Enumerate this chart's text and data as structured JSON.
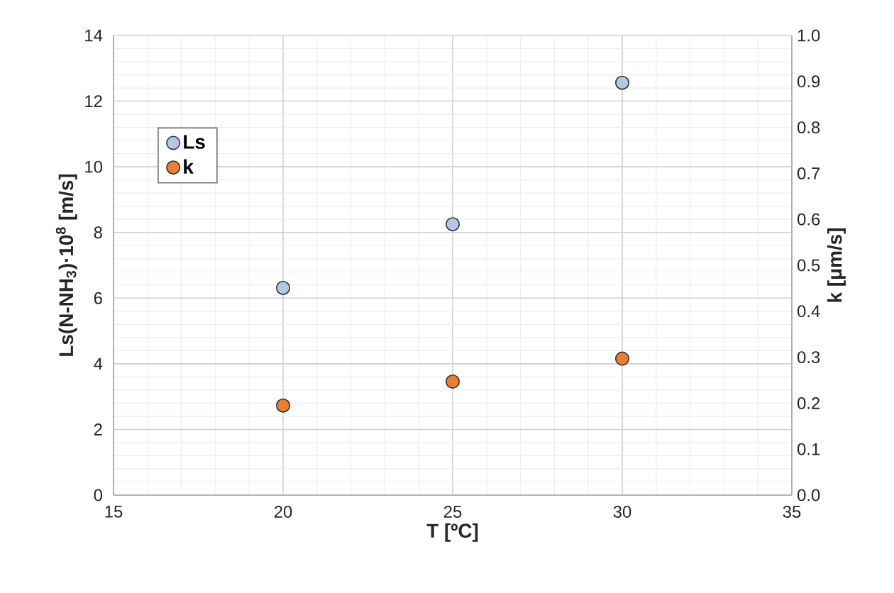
{
  "chart_data": {
    "type": "scatter",
    "xlabel": "T [ºC]",
    "ylabel": "Ls(N-NH$_{3}$)·10$^{8}$ [m/s]",
    "y2label": "k [μm/s]",
    "x": [
      20,
      25,
      30
    ],
    "series": [
      {
        "name": "Ls",
        "color": "#b4c7e7",
        "values": [
          6.31,
          8.25,
          12.56
        ]
      },
      {
        "name": "k",
        "color": "#ed7d31",
        "values": [
          0.195,
          0.247,
          0.297
        ],
        "axis": "y2"
      }
    ],
    "xlim": [
      15,
      35
    ],
    "xticks": [
      15,
      20,
      25,
      30,
      35
    ],
    "ylim": [
      0,
      14
    ],
    "yticks": [
      0,
      2,
      4,
      6,
      8,
      10,
      12,
      14
    ],
    "y2lim": [
      0,
      1
    ],
    "y2ticks": [
      {
        "value": 0,
        "label": "0.0"
      },
      {
        "value": 0.1,
        "label": "0.1"
      },
      {
        "value": 0.2,
        "label": "0.2"
      },
      {
        "value": 0.3,
        "label": "0.3"
      },
      {
        "value": 0.4,
        "label": "0.4"
      },
      {
        "value": 0.5,
        "label": "0.5"
      },
      {
        "value": 0.6,
        "label": "0.6"
      },
      {
        "value": 0.7,
        "label": "0.7"
      },
      {
        "value": 0.8,
        "label": "0.8"
      },
      {
        "value": 0.9,
        "label": "0.9"
      },
      {
        "value": 1,
        "label": "1.0"
      }
    ],
    "grid": true,
    "legend": "top left",
    "marker": "circle"
  }
}
